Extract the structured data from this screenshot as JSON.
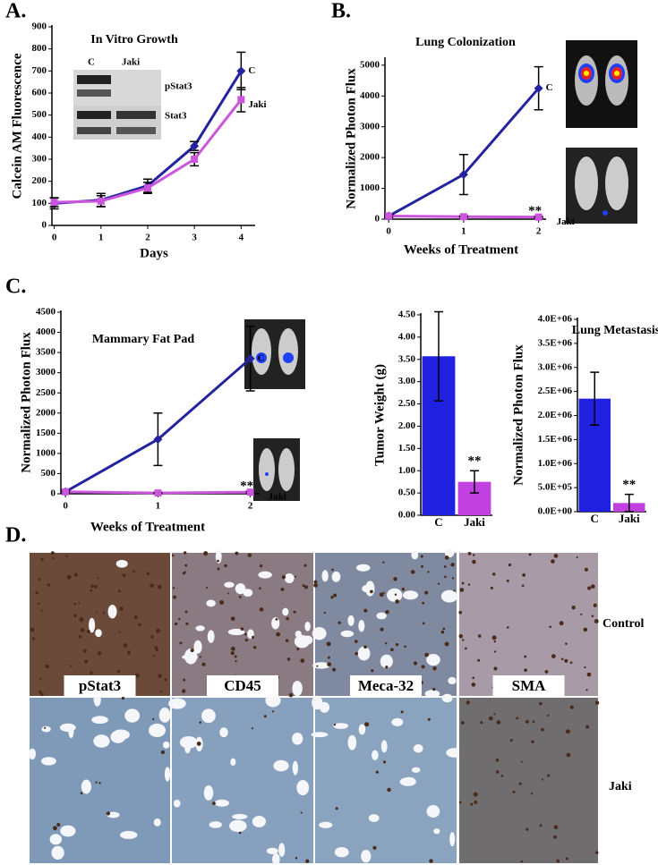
{
  "panel_labels": [
    "A.",
    "B.",
    "C.",
    "D."
  ],
  "blot": {
    "lanes": [
      "C",
      "Jaki"
    ],
    "bands": [
      "pStat3",
      "Stat3"
    ]
  },
  "micrographs": {
    "stains": [
      "pStat3",
      "CD45",
      "Meca-32",
      "SMA"
    ],
    "rows": [
      "Control",
      "Jaki"
    ]
  },
  "chart_data": [
    {
      "type": "line",
      "title": "In Vitro Growth",
      "ylabel": "Calcein AM Fluorescence",
      "xlabel": "Days",
      "x": [
        0,
        1,
        2,
        3,
        4
      ],
      "xlim": [
        -0.05,
        4.3
      ],
      "xticks": [
        0,
        1,
        2,
        3,
        4
      ],
      "ylim": [
        0,
        900
      ],
      "yticks": [
        0,
        100,
        200,
        300,
        400,
        500,
        600,
        700,
        800,
        900
      ],
      "series": [
        {
          "name": "C",
          "color": "#23239e",
          "values": [
            100,
            115,
            180,
            360,
            700
          ],
          "errors": [
            25,
            30,
            30,
            20,
            85
          ]
        },
        {
          "name": "Jaki",
          "color": "#cc55dd",
          "values": [
            105,
            110,
            170,
            300,
            570
          ],
          "errors": [
            20,
            25,
            25,
            30,
            55
          ]
        }
      ]
    },
    {
      "type": "line",
      "title": "Lung Colonization",
      "ylabel": "Normalized Photon Flux",
      "xlabel": "Weeks of Treatment",
      "x": [
        0,
        1,
        2
      ],
      "xlim": [
        -0.05,
        2.1
      ],
      "xticks": [
        0,
        1,
        2
      ],
      "ylim": [
        0,
        5200
      ],
      "yticks": [
        0,
        1000,
        2000,
        3000,
        4000,
        5000
      ],
      "annotation": "**",
      "series": [
        {
          "name": "C",
          "color": "#23239e",
          "values": [
            100,
            1450,
            4250
          ],
          "errors": [
            50,
            650,
            700
          ]
        },
        {
          "name": "Jaki",
          "color": "#cc55dd",
          "values": [
            100,
            80,
            70
          ],
          "errors": [
            30,
            20,
            20
          ]
        }
      ]
    },
    {
      "type": "line",
      "title": "Mammary Fat Pad",
      "ylabel": "Normalized Photon Flux",
      "xlabel": "Weeks of Treatment",
      "x": [
        0,
        1,
        2
      ],
      "xlim": [
        -0.05,
        2.1
      ],
      "xticks": [
        0,
        1,
        2
      ],
      "ylim": [
        0,
        4500
      ],
      "yticks": [
        0,
        500,
        1000,
        1500,
        2000,
        2500,
        3000,
        3500,
        4000,
        4500
      ],
      "annotation": "**",
      "series": [
        {
          "name": "C",
          "color": "#23239e",
          "values": [
            50,
            1350,
            3350
          ],
          "errors": [
            30,
            650,
            800
          ]
        },
        {
          "name": "Jaki",
          "color": "#cc55dd",
          "values": [
            50,
            20,
            40
          ],
          "errors": [
            20,
            15,
            20
          ]
        }
      ]
    },
    {
      "type": "bar",
      "ylabel": "Tumor Weight (g)",
      "categories": [
        "C",
        "Jaki"
      ],
      "values": [
        3.57,
        0.75
      ],
      "errors": [
        1.0,
        0.25
      ],
      "colors": [
        "#2020e0",
        "#c040e0"
      ],
      "ylim": [
        0,
        4.5
      ],
      "yticks": [
        {
          "value": 0,
          "label": "0.00"
        },
        {
          "value": 0.5,
          "label": "0.50"
        },
        {
          "value": 1,
          "label": "1.00"
        },
        {
          "value": 1.5,
          "label": "1.50"
        },
        {
          "value": 2,
          "label": "2.00"
        },
        {
          "value": 2.5,
          "label": "2.50"
        },
        {
          "value": 3,
          "label": "3.00"
        },
        {
          "value": 3.5,
          "label": "3.50"
        },
        {
          "value": 4,
          "label": "4.00"
        },
        {
          "value": 4.5,
          "label": "4.50"
        }
      ],
      "annotation": "**"
    },
    {
      "type": "bar",
      "title": "Lung Metastasis",
      "ylabel": "Normalized Photon Flux",
      "categories": [
        "C",
        "Jaki"
      ],
      "values": [
        2350000,
        180000
      ],
      "errors": [
        550000,
        180000
      ],
      "colors": [
        "#2020e0",
        "#c040e0"
      ],
      "ylim": [
        0,
        4000000
      ],
      "yticks": [
        {
          "value": 0,
          "label": "0.0E+00"
        },
        {
          "value": 500000,
          "label": "5.0E+05"
        },
        {
          "value": 1000000,
          "label": "1.0E+06"
        },
        {
          "value": 1500000,
          "label": "1.5E+06"
        },
        {
          "value": 2000000,
          "label": "2.0E+06"
        },
        {
          "value": 2500000,
          "label": "2.5E+06"
        },
        {
          "value": 3000000,
          "label": "3.0E+06"
        },
        {
          "value": 3500000,
          "label": "3.5E+06"
        },
        {
          "value": 4000000,
          "label": "4.0E+06"
        }
      ],
      "annotation": "**"
    }
  ]
}
